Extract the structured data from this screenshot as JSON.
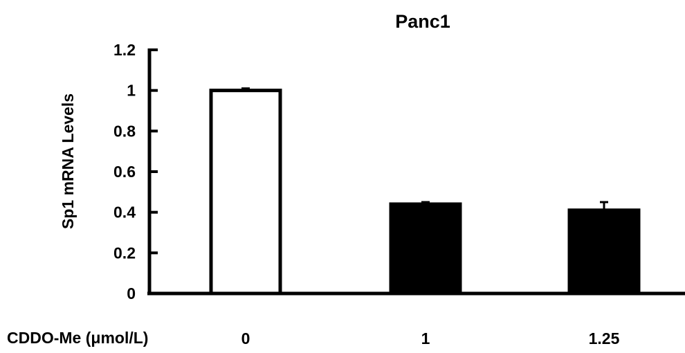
{
  "chart_data": {
    "type": "bar",
    "title": "Panc1",
    "xlabel": "CDDO-Me (μmol/L)",
    "ylabel": "Sp1 mRNA Levels",
    "categories": [
      "0",
      "1",
      "1.25"
    ],
    "values": [
      1.0,
      0.44,
      0.41
    ],
    "errors": [
      0.01,
      0.01,
      0.04
    ],
    "bar_colors": [
      "#ffffff",
      "#000000",
      "#000000"
    ],
    "ylim": [
      0,
      1.2
    ],
    "yticks": [
      "0",
      "0.2",
      "0.4",
      "0.6",
      "0.8",
      "1",
      "1.2"
    ],
    "grid": false,
    "legend": "none"
  }
}
